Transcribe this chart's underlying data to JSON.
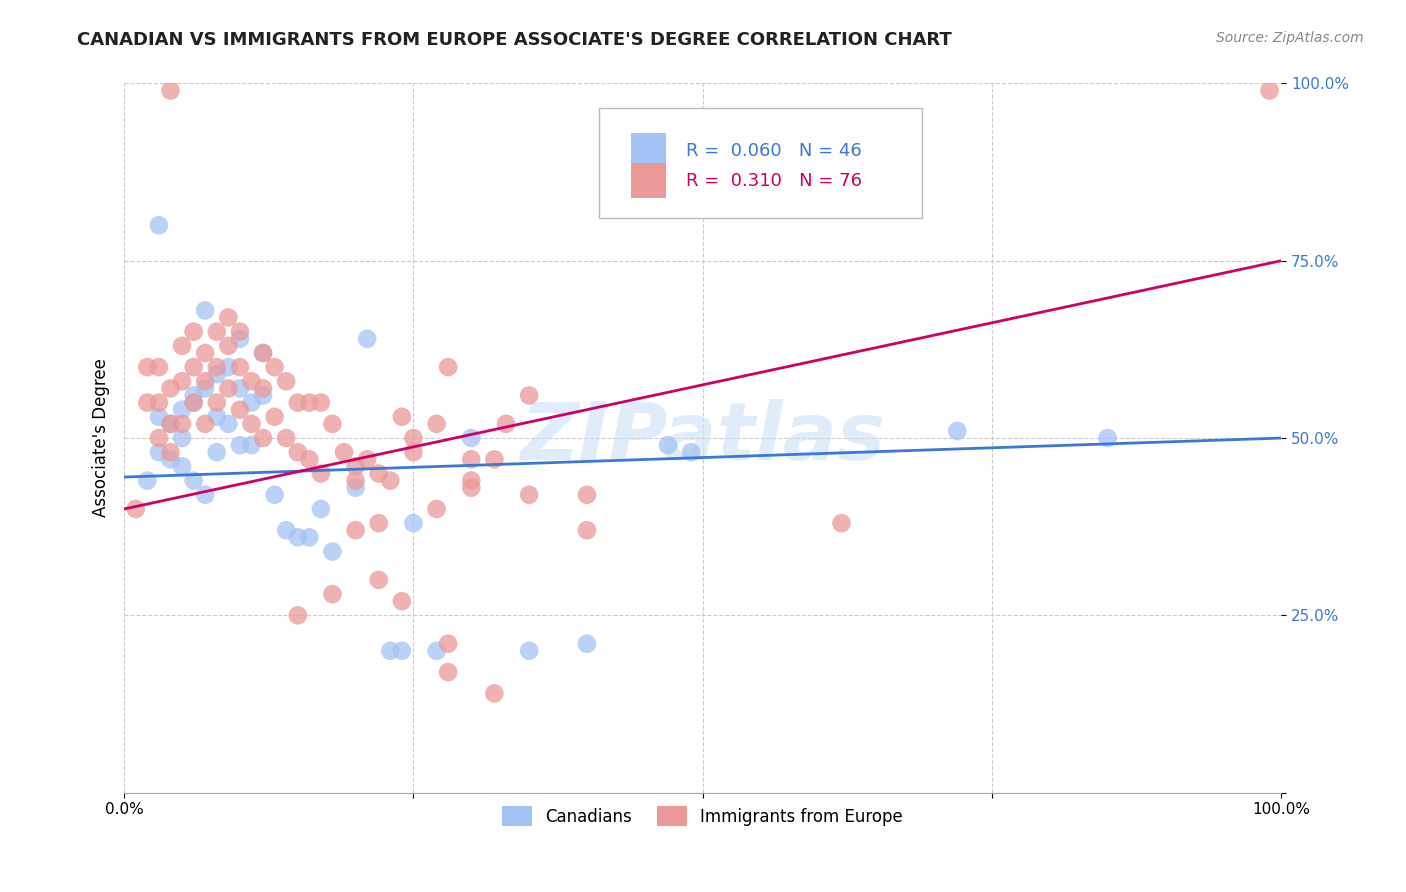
{
  "title": "CANADIAN VS IMMIGRANTS FROM EUROPE ASSOCIATE'S DEGREE CORRELATION CHART",
  "source": "Source: ZipAtlas.com",
  "ylabel": "Associate's Degree",
  "watermark": "ZIPatlas",
  "canadians": {
    "R": 0.06,
    "N": 46,
    "color": "#a4c2f4",
    "line_color": "#3c78d8",
    "x": [
      0.02,
      0.03,
      0.03,
      0.04,
      0.04,
      0.05,
      0.05,
      0.05,
      0.06,
      0.06,
      0.06,
      0.07,
      0.07,
      0.08,
      0.08,
      0.08,
      0.09,
      0.09,
      0.1,
      0.1,
      0.1,
      0.11,
      0.11,
      0.12,
      0.12,
      0.13,
      0.14,
      0.15,
      0.16,
      0.17,
      0.18,
      0.2,
      0.21,
      0.23,
      0.24,
      0.25,
      0.27,
      0.3,
      0.35,
      0.4,
      0.47,
      0.49,
      0.72,
      0.85,
      0.03,
      0.07
    ],
    "y": [
      0.44,
      0.53,
      0.48,
      0.52,
      0.47,
      0.54,
      0.5,
      0.46,
      0.56,
      0.55,
      0.44,
      0.57,
      0.42,
      0.59,
      0.53,
      0.48,
      0.6,
      0.52,
      0.64,
      0.57,
      0.49,
      0.55,
      0.49,
      0.62,
      0.56,
      0.42,
      0.37,
      0.36,
      0.36,
      0.4,
      0.34,
      0.43,
      0.64,
      0.2,
      0.2,
      0.38,
      0.2,
      0.5,
      0.2,
      0.21,
      0.49,
      0.48,
      0.51,
      0.5,
      0.8,
      0.68
    ]
  },
  "immigrants": {
    "R": 0.31,
    "N": 76,
    "color": "#ea9999",
    "line_color": "#cc0066",
    "x": [
      0.01,
      0.02,
      0.02,
      0.03,
      0.03,
      0.03,
      0.04,
      0.04,
      0.04,
      0.05,
      0.05,
      0.05,
      0.06,
      0.06,
      0.06,
      0.07,
      0.07,
      0.07,
      0.08,
      0.08,
      0.08,
      0.09,
      0.09,
      0.09,
      0.1,
      0.1,
      0.1,
      0.11,
      0.11,
      0.12,
      0.12,
      0.12,
      0.13,
      0.13,
      0.14,
      0.14,
      0.15,
      0.15,
      0.16,
      0.16,
      0.17,
      0.17,
      0.18,
      0.19,
      0.2,
      0.2,
      0.21,
      0.22,
      0.23,
      0.24,
      0.25,
      0.27,
      0.28,
      0.3,
      0.32,
      0.33,
      0.35,
      0.4,
      0.2,
      0.25,
      0.3,
      0.35,
      0.4,
      0.22,
      0.27,
      0.3,
      0.15,
      0.18,
      0.22,
      0.62,
      0.28,
      0.32,
      0.24,
      0.28,
      0.04,
      0.99
    ],
    "y": [
      0.4,
      0.55,
      0.6,
      0.6,
      0.55,
      0.5,
      0.57,
      0.52,
      0.48,
      0.63,
      0.58,
      0.52,
      0.65,
      0.6,
      0.55,
      0.62,
      0.58,
      0.52,
      0.65,
      0.6,
      0.55,
      0.67,
      0.63,
      0.57,
      0.65,
      0.6,
      0.54,
      0.58,
      0.52,
      0.62,
      0.57,
      0.5,
      0.6,
      0.53,
      0.58,
      0.5,
      0.55,
      0.48,
      0.55,
      0.47,
      0.55,
      0.45,
      0.52,
      0.48,
      0.46,
      0.37,
      0.47,
      0.45,
      0.44,
      0.53,
      0.48,
      0.52,
      0.6,
      0.47,
      0.47,
      0.52,
      0.56,
      0.37,
      0.44,
      0.5,
      0.44,
      0.42,
      0.42,
      0.38,
      0.4,
      0.43,
      0.25,
      0.28,
      0.3,
      0.38,
      0.17,
      0.14,
      0.27,
      0.21,
      0.99,
      0.99
    ]
  },
  "xlim": [
    0.0,
    1.0
  ],
  "ylim": [
    0.0,
    1.0
  ],
  "yticks": [
    0.0,
    0.25,
    0.5,
    0.75,
    1.0
  ],
  "ytick_labels": [
    "",
    "25.0%",
    "50.0%",
    "75.0%",
    "100.0%"
  ],
  "xticks": [
    0.0,
    0.25,
    0.5,
    0.75,
    1.0
  ],
  "xtick_labels": [
    "0.0%",
    "",
    "",
    "",
    "100.0%"
  ],
  "grid_color": "#cccccc",
  "background_color": "#ffffff",
  "title_fontsize": 13,
  "axis_label_fontsize": 12,
  "tick_fontsize": 11,
  "legend_fontsize": 13,
  "source_fontsize": 10
}
